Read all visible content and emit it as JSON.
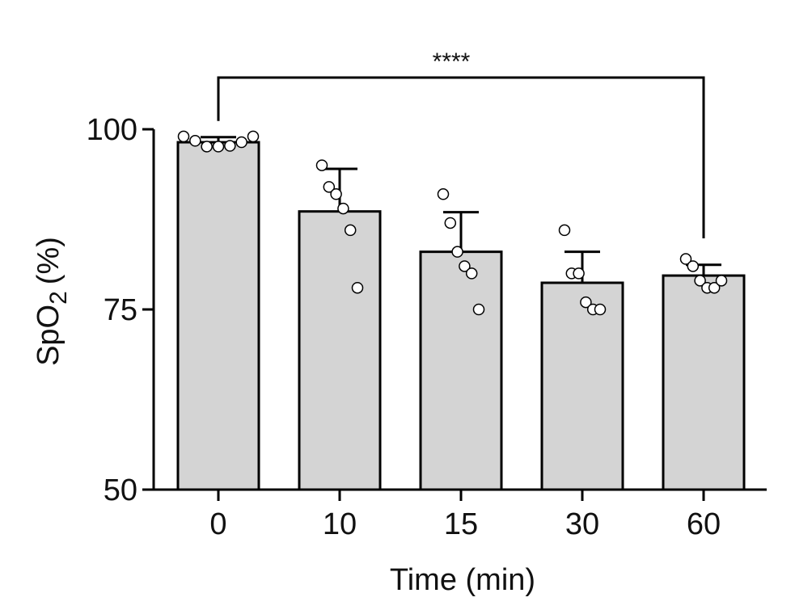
{
  "chart_data": {
    "type": "bar",
    "categories": [
      "0",
      "10",
      "15",
      "30",
      "60"
    ],
    "values": [
      98.2,
      88.6,
      83.0,
      78.7,
      79.7
    ],
    "error_upper": [
      98.9,
      94.5,
      88.5,
      83.0,
      81.2
    ],
    "points": [
      [
        99.0,
        98.4,
        97.6,
        97.6,
        97.7,
        98.2,
        99.0
      ],
      [
        95.0,
        92.0,
        91.0,
        89.0,
        86.0,
        78.0
      ],
      [
        91.0,
        87.0,
        83.0,
        81.0,
        80.0,
        75.0
      ],
      [
        86.0,
        80.0,
        80.0,
        76.0,
        75.0,
        75.0
      ],
      [
        82.0,
        81.0,
        79.0,
        78.0,
        78.0,
        79.0
      ]
    ],
    "xlabel": "Time (min)",
    "ylabel_main": "SpO",
    "ylabel_sub": "2",
    "ylabel_unit": "(%)",
    "ylim": [
      50,
      100
    ],
    "yticks": [
      "50",
      "75",
      "100"
    ],
    "significance": {
      "from": "0",
      "to": "60",
      "label": "****"
    },
    "colors": {
      "bar_fill": "#d4d4d4",
      "stroke": "#000000",
      "point_fill": "#ffffff"
    },
    "grid": false,
    "legend": "none"
  }
}
